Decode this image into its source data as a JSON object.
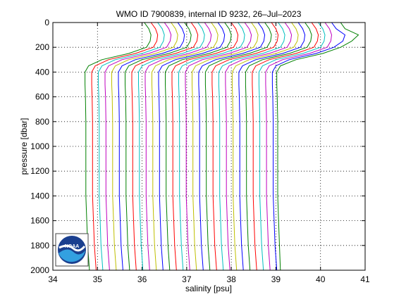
{
  "chart_data": {
    "type": "line",
    "title": "WMO ID 7900839, internal ID 9232, 26–Jul–2023",
    "xlabel": "salinity [psu]",
    "ylabel": "pressure [dbar]",
    "xlim": [
      34,
      41
    ],
    "ylim": [
      0,
      2000
    ],
    "y_reversed": true,
    "grid": true,
    "grid_style": "dotted",
    "xticks": [
      "34",
      "35",
      "36",
      "37",
      "38",
      "39",
      "40",
      "41"
    ],
    "yticks": [
      "0",
      "200",
      "400",
      "600",
      "800",
      "1000",
      "1200",
      "1400",
      "1600",
      "1800",
      "2000"
    ],
    "pressure_levels": [
      0,
      50,
      100,
      150,
      200,
      250,
      300,
      350,
      400,
      450,
      500,
      600,
      800,
      1000,
      1200,
      1400,
      1600,
      1800,
      2000
    ],
    "series": [
      {
        "color": "#008000",
        "values": [
          36.05,
          36.15,
          36.2,
          36.18,
          36.1,
          35.7,
          35.1,
          34.8,
          34.72,
          34.72,
          34.72,
          34.73,
          34.74,
          34.74,
          34.74,
          34.74,
          34.76,
          34.78,
          34.82
        ]
      },
      {
        "color": "#ff0000",
        "values": [
          36.2,
          36.3,
          36.35,
          36.33,
          36.25,
          35.85,
          35.25,
          34.95,
          34.87,
          34.87,
          34.87,
          34.88,
          34.89,
          34.89,
          34.89,
          34.89,
          34.91,
          34.93,
          34.97
        ]
      },
      {
        "color": "#00bfbf",
        "values": [
          36.35,
          36.45,
          36.5,
          36.48,
          36.4,
          36.0,
          35.4,
          35.1,
          35.02,
          35.02,
          35.02,
          35.03,
          35.04,
          35.04,
          35.04,
          35.04,
          35.06,
          35.08,
          35.12
        ]
      },
      {
        "color": "#bf00bf",
        "values": [
          36.5,
          36.6,
          36.65,
          36.63,
          36.55,
          36.15,
          35.55,
          35.25,
          35.17,
          35.17,
          35.17,
          35.18,
          35.19,
          35.19,
          35.19,
          35.19,
          35.21,
          35.23,
          35.27
        ]
      },
      {
        "color": "#bfbf00",
        "values": [
          36.65,
          36.75,
          36.8,
          36.78,
          36.7,
          36.3,
          35.7,
          35.4,
          35.32,
          35.32,
          35.32,
          35.33,
          35.34,
          35.34,
          35.34,
          35.34,
          35.36,
          35.38,
          35.42
        ]
      },
      {
        "color": "#0000ff",
        "values": [
          36.8,
          36.9,
          36.95,
          36.93,
          36.85,
          36.45,
          35.85,
          35.55,
          35.47,
          35.47,
          35.47,
          35.48,
          35.49,
          35.49,
          35.49,
          35.49,
          35.51,
          35.53,
          35.57
        ]
      },
      {
        "color": "#008000",
        "values": [
          36.95,
          37.05,
          37.1,
          37.08,
          37.0,
          36.6,
          36.0,
          35.7,
          35.62,
          35.62,
          35.62,
          35.63,
          35.64,
          35.64,
          35.64,
          35.64,
          35.66,
          35.68,
          35.72
        ]
      },
      {
        "color": "#ff0000",
        "values": [
          37.1,
          37.2,
          37.25,
          37.23,
          37.15,
          36.75,
          36.15,
          35.85,
          35.77,
          35.77,
          35.77,
          35.78,
          35.79,
          35.79,
          35.79,
          35.79,
          35.81,
          35.83,
          35.87
        ]
      },
      {
        "color": "#00bfbf",
        "values": [
          37.25,
          37.35,
          37.4,
          37.38,
          37.3,
          36.9,
          36.3,
          36.0,
          35.92,
          35.92,
          35.92,
          35.93,
          35.94,
          35.94,
          35.94,
          35.94,
          35.96,
          35.98,
          36.02
        ]
      },
      {
        "color": "#bf00bf",
        "values": [
          37.4,
          37.5,
          37.55,
          37.53,
          37.45,
          37.05,
          36.45,
          36.15,
          36.07,
          36.07,
          36.07,
          36.08,
          36.09,
          36.09,
          36.09,
          36.09,
          36.11,
          36.13,
          36.17
        ]
      },
      {
        "color": "#bfbf00",
        "values": [
          37.55,
          37.65,
          37.7,
          37.68,
          37.6,
          37.2,
          36.6,
          36.3,
          36.22,
          36.22,
          36.22,
          36.23,
          36.24,
          36.24,
          36.24,
          36.24,
          36.26,
          36.28,
          36.32
        ]
      },
      {
        "color": "#0000ff",
        "values": [
          37.7,
          37.8,
          37.85,
          37.83,
          37.75,
          37.35,
          36.75,
          36.45,
          36.37,
          36.37,
          36.37,
          36.38,
          36.39,
          36.39,
          36.39,
          36.39,
          36.41,
          36.43,
          36.47
        ]
      },
      {
        "color": "#008000",
        "values": [
          37.85,
          37.95,
          38.0,
          37.98,
          37.9,
          37.5,
          36.9,
          36.6,
          36.52,
          36.52,
          36.52,
          36.53,
          36.54,
          36.54,
          36.54,
          36.54,
          36.56,
          36.58,
          36.62
        ]
      },
      {
        "color": "#ff0000",
        "values": [
          38.0,
          38.1,
          38.15,
          38.13,
          38.05,
          37.65,
          37.05,
          36.75,
          36.67,
          36.67,
          36.67,
          36.68,
          36.69,
          36.69,
          36.69,
          36.69,
          36.71,
          36.73,
          36.77
        ]
      },
      {
        "color": "#00bfbf",
        "values": [
          38.15,
          38.25,
          38.3,
          38.28,
          38.2,
          37.8,
          37.2,
          36.9,
          36.82,
          36.82,
          36.82,
          36.83,
          36.84,
          36.84,
          36.84,
          36.84,
          36.86,
          36.88,
          36.92
        ]
      },
      {
        "color": "#bf00bf",
        "values": [
          38.3,
          38.4,
          38.45,
          38.43,
          38.35,
          37.95,
          37.35,
          37.05,
          36.97,
          36.97,
          36.97,
          36.98,
          36.99,
          36.99,
          36.99,
          36.99,
          37.01,
          37.03,
          37.07
        ]
      },
      {
        "color": "#bfbf00",
        "values": [
          38.45,
          38.55,
          38.6,
          38.58,
          38.5,
          38.1,
          37.5,
          37.2,
          37.12,
          37.12,
          37.12,
          37.13,
          37.14,
          37.14,
          37.14,
          37.14,
          37.16,
          37.18,
          37.22
        ]
      },
      {
        "color": "#0000ff",
        "values": [
          38.6,
          38.7,
          38.75,
          38.73,
          38.65,
          38.25,
          37.65,
          37.35,
          37.27,
          37.27,
          37.27,
          37.28,
          37.29,
          37.29,
          37.29,
          37.29,
          37.31,
          37.33,
          37.37
        ]
      },
      {
        "color": "#008000",
        "values": [
          38.75,
          38.85,
          38.9,
          38.88,
          38.8,
          38.4,
          37.8,
          37.5,
          37.42,
          37.42,
          37.42,
          37.43,
          37.44,
          37.44,
          37.44,
          37.44,
          37.46,
          37.48,
          37.52
        ]
      },
      {
        "color": "#ff0000",
        "values": [
          38.9,
          39.0,
          39.05,
          39.03,
          38.95,
          38.55,
          37.95,
          37.65,
          37.57,
          37.57,
          37.57,
          37.58,
          37.59,
          37.59,
          37.59,
          37.59,
          37.61,
          37.63,
          37.67
        ]
      },
      {
        "color": "#00bfbf",
        "values": [
          39.05,
          39.15,
          39.2,
          39.18,
          39.1,
          38.7,
          38.1,
          37.8,
          37.72,
          37.72,
          37.72,
          37.73,
          37.74,
          37.74,
          37.74,
          37.74,
          37.76,
          37.78,
          37.82
        ]
      },
      {
        "color": "#bf00bf",
        "values": [
          39.2,
          39.3,
          39.35,
          39.33,
          39.25,
          38.85,
          38.25,
          37.95,
          37.87,
          37.87,
          37.87,
          37.88,
          37.89,
          37.89,
          37.89,
          37.89,
          37.91,
          37.93,
          37.97
        ]
      },
      {
        "color": "#bfbf00",
        "values": [
          39.35,
          39.45,
          39.5,
          39.48,
          39.4,
          39.0,
          38.4,
          38.1,
          38.02,
          38.02,
          38.02,
          38.03,
          38.04,
          38.04,
          38.04,
          38.04,
          38.06,
          38.08,
          38.12
        ]
      },
      {
        "color": "#0000ff",
        "values": [
          39.5,
          39.6,
          39.65,
          39.63,
          39.55,
          39.15,
          38.55,
          38.25,
          38.17,
          38.17,
          38.17,
          38.18,
          38.19,
          38.19,
          38.19,
          38.19,
          38.21,
          38.23,
          38.27
        ]
      },
      {
        "color": "#008000",
        "values": [
          39.65,
          39.75,
          39.8,
          39.78,
          39.7,
          39.3,
          38.7,
          38.4,
          38.32,
          38.32,
          38.32,
          38.33,
          38.34,
          38.34,
          38.34,
          38.34,
          38.36,
          38.38,
          38.42
        ]
      },
      {
        "color": "#ff0000",
        "values": [
          39.8,
          39.9,
          39.95,
          39.93,
          39.85,
          39.45,
          38.85,
          38.55,
          38.47,
          38.47,
          38.47,
          38.48,
          38.49,
          38.49,
          38.49,
          38.49,
          38.51,
          38.53,
          38.57
        ]
      },
      {
        "color": "#00bfbf",
        "values": [
          39.95,
          40.05,
          40.1,
          40.08,
          40.0,
          39.6,
          39.0,
          38.7,
          38.62,
          38.62,
          38.62,
          38.63,
          38.64,
          38.64,
          38.64,
          38.64,
          38.66,
          38.68,
          38.72
        ]
      },
      {
        "color": "#bf00bf",
        "values": [
          40.1,
          40.2,
          40.25,
          40.23,
          40.15,
          39.75,
          39.15,
          38.85,
          38.77,
          38.77,
          38.77,
          38.78,
          38.79,
          38.79,
          38.79,
          38.79,
          38.81,
          38.83,
          38.87
        ]
      },
      {
        "color": "#0000ff",
        "values": [
          40.25,
          40.35,
          40.55,
          40.5,
          40.3,
          39.9,
          39.3,
          39.0,
          38.92,
          38.92,
          38.92,
          38.93,
          38.94,
          38.94,
          38.94,
          38.94,
          38.96,
          38.98,
          39.02
        ]
      },
      {
        "color": "#008000",
        "values": [
          40.45,
          40.55,
          40.85,
          40.7,
          40.45,
          40.05,
          39.45,
          39.1,
          39.02,
          39.02,
          39.02,
          39.03,
          39.04,
          39.04,
          39.04,
          39.04,
          39.06,
          39.08,
          39.1
        ]
      }
    ]
  },
  "logo": {
    "text": "NOAA"
  }
}
